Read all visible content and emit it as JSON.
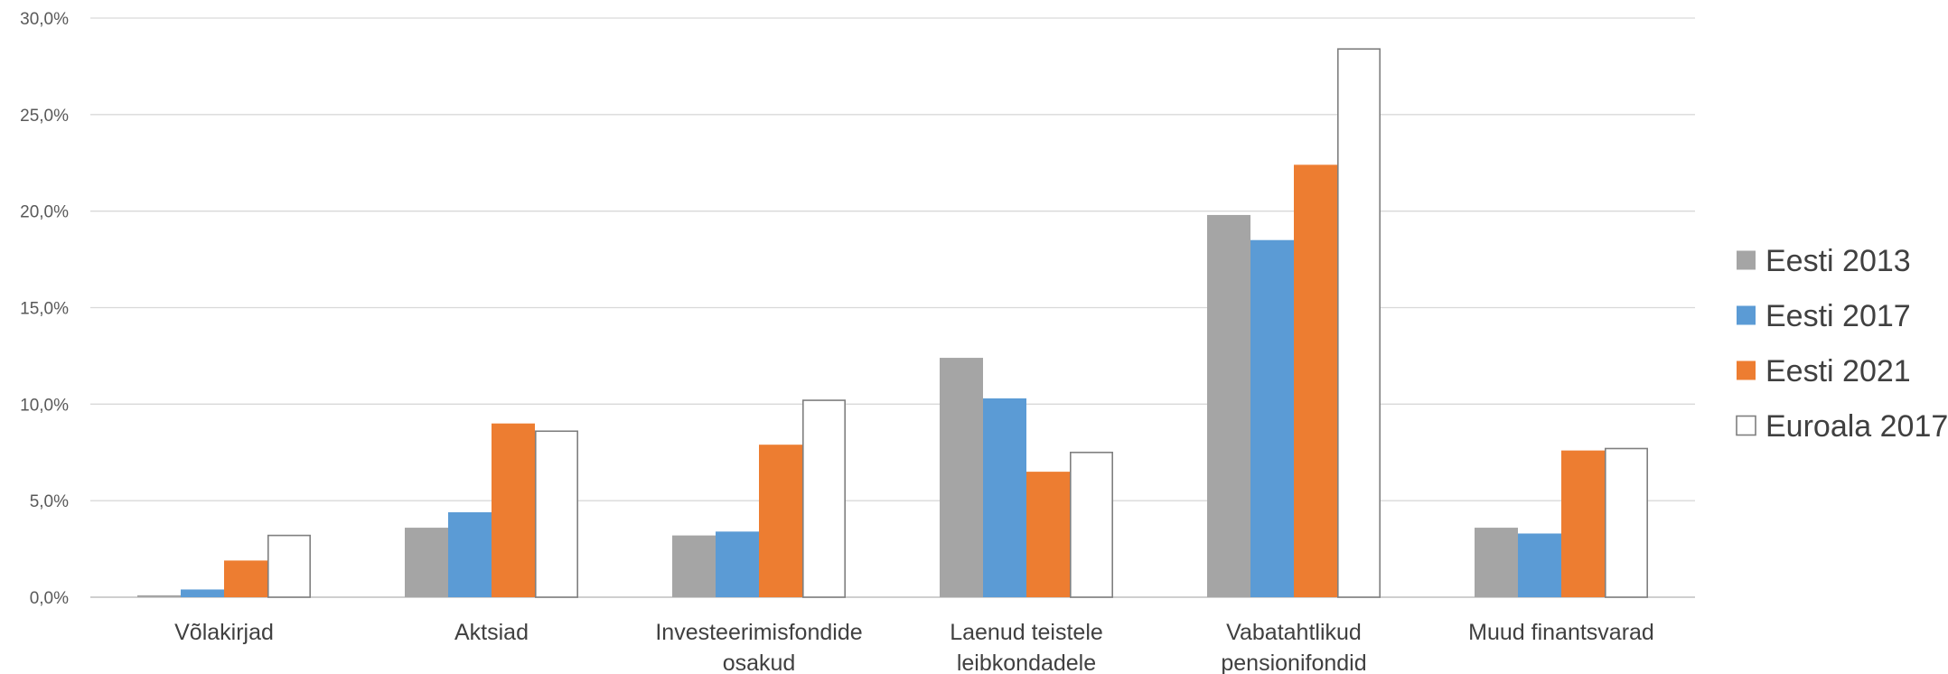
{
  "chart_data": {
    "type": "bar",
    "categories": [
      [
        "Võlakirjad"
      ],
      [
        "Aktsiad"
      ],
      [
        "Investeerimisfondide",
        "osakud"
      ],
      [
        "Laenud teistele",
        "leibkondadele"
      ],
      [
        "Vabatahtlikud",
        "pensionifondid"
      ],
      [
        "Muud finantsvarad"
      ]
    ],
    "series": [
      {
        "name": "Eesti 2013",
        "color": "#a5a5a5",
        "values": [
          0.1,
          3.6,
          3.2,
          12.4,
          19.8,
          3.6
        ]
      },
      {
        "name": "Eesti 2017",
        "color": "#5b9bd5",
        "values": [
          0.4,
          4.4,
          3.4,
          10.3,
          18.5,
          3.3
        ]
      },
      {
        "name": "Eesti 2021",
        "color": "#ed7d31",
        "values": [
          1.9,
          9.0,
          7.9,
          6.5,
          22.4,
          7.6
        ]
      },
      {
        "name": "Euroala 2017",
        "color": "#ffffff",
        "stroke": "#7f7f7f",
        "values": [
          3.2,
          8.6,
          10.2,
          7.5,
          28.4,
          7.7
        ]
      }
    ],
    "yticks": [
      "0,0%",
      "5,0%",
      "10,0%",
      "15,0%",
      "20,0%",
      "25,0%",
      "30,0%"
    ],
    "ylim": [
      0,
      30
    ],
    "grid": true,
    "legend_position": "right",
    "title": "",
    "xlabel": "",
    "ylabel": ""
  }
}
